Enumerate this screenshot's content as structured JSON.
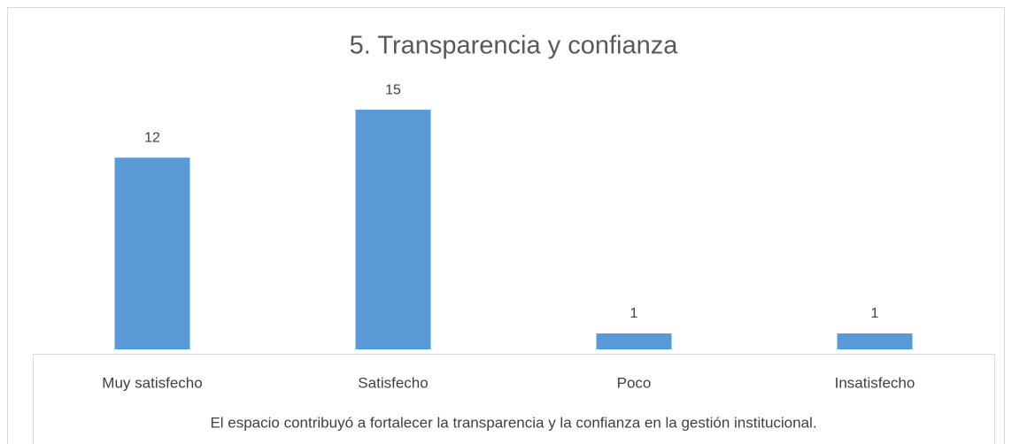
{
  "chart_data": {
    "type": "bar",
    "title": "5. Transparencia y confianza",
    "x_label": "El espacio contribuyó a fortalecer la transparencia y la confianza en la gestión institucional.",
    "categories": [
      "Muy satisfecho",
      "Satisfecho",
      "Poco",
      "Insatisfecho"
    ],
    "values": [
      12,
      15,
      1,
      1
    ],
    "color": "#5b9bd5",
    "ylim": [
      0,
      16
    ]
  }
}
